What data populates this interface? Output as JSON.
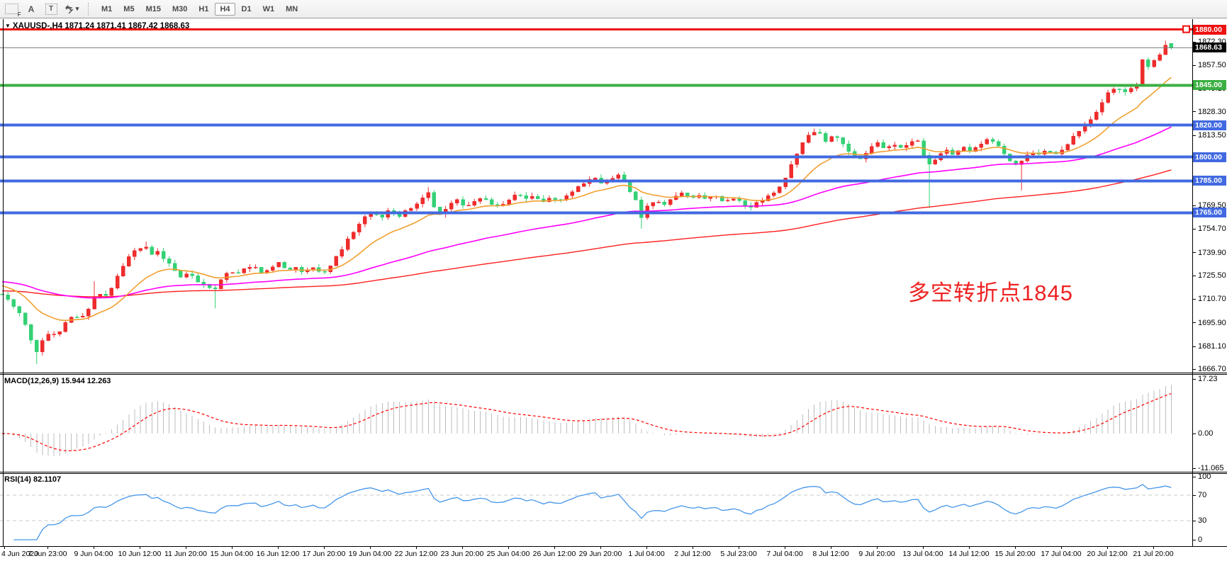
{
  "toolbar": {
    "icons": {
      "grid_f": "F",
      "label_a": "A",
      "text_box": "T",
      "caret": "▾"
    },
    "timeframes": [
      "M1",
      "M5",
      "M15",
      "M30",
      "H1",
      "H4",
      "D1",
      "W1",
      "MN"
    ],
    "active_timeframe": "H4"
  },
  "chart": {
    "dropdown_glyph": "▼",
    "title": "XAUUSD-,H4  1871.24 1871.41 1867.42 1868.63",
    "annotation": {
      "text": "多空转折点1845",
      "color": "#ee2222"
    }
  },
  "price_axis": {
    "ticks": [
      "1872.30",
      "1857.50",
      "1843.10",
      "1828.30",
      "1813.50",
      "1798.70",
      "1783.90",
      "1769.50",
      "1754.70",
      "1739.90",
      "1725.50",
      "1710.70",
      "1695.90",
      "1681.10",
      "1666.70"
    ],
    "badges": [
      {
        "text": "1880.00",
        "price": 1880.0,
        "bg": "#ee1111"
      },
      {
        "text": "1868.63",
        "price": 1868.63,
        "bg": "#000000"
      },
      {
        "text": "1845.00",
        "price": 1845.0,
        "bg": "#3cb043"
      },
      {
        "text": "1820.00",
        "price": 1820.0,
        "bg": "#4169e1"
      },
      {
        "text": "1800.00",
        "price": 1800.0,
        "bg": "#4169e1"
      },
      {
        "text": "1785.00",
        "price": 1785.0,
        "bg": "#4169e1"
      },
      {
        "text": "1765.00",
        "price": 1765.0,
        "bg": "#4169e1"
      }
    ]
  },
  "indicators": {
    "macd": {
      "label": "MACD(12,26,9) 15.944 12.263",
      "axis": [
        {
          "text": "17.23",
          "value": 17.23
        },
        {
          "text": "0.00",
          "value": 0
        },
        {
          "text": "-11.065",
          "value": -11.065
        }
      ]
    },
    "rsi": {
      "label": "RSI(14) 82.1107",
      "axis": [
        {
          "text": "100",
          "value": 100
        },
        {
          "text": "70",
          "value": 70
        },
        {
          "text": "30",
          "value": 30
        },
        {
          "text": "0",
          "value": 0
        }
      ],
      "levels": [
        70,
        30
      ]
    }
  },
  "time_axis": {
    "labels": [
      "4 Jun 2020",
      "7 Jun 23:00",
      "9 Jun 04:00",
      "10 Jun 12:00",
      "11 Jun 20:00",
      "15 Jun 04:00",
      "16 Jun 12:00",
      "17 Jun 20:00",
      "19 Jun 04:00",
      "22 Jun 12:00",
      "23 Jun 20:00",
      "25 Jun 04:00",
      "26 Jun 12:00",
      "29 Jun 20:00",
      "1 Jul 04:00",
      "2 Jul 12:00",
      "5 Jul 23:00",
      "7 Jul 04:00",
      "8 Jul 12:00",
      "9 Jul 20:00",
      "13 Jul 04:00",
      "14 Jul 12:00",
      "15 Jul 20:00",
      "17 Jul 04:00",
      "20 Jul 12:00",
      "21 Jul 20:00"
    ]
  },
  "chart_data": {
    "type": "candlestick",
    "symbol": "XAUUSD-",
    "timeframe": "H4",
    "title": "XAUUSD-,H4",
    "last_ohlc": {
      "open": 1871.24,
      "high": 1871.41,
      "low": 1867.42,
      "close": 1868.63
    },
    "price_range_shown": [
      1666.7,
      1880.0
    ],
    "levels": [
      {
        "price": 1880.0,
        "color": "#ee1111",
        "width": 3
      },
      {
        "price": 1845.0,
        "color": "#3cb043",
        "width": 4
      },
      {
        "price": 1820.0,
        "color": "#4169e1",
        "width": 4
      },
      {
        "price": 1800.0,
        "color": "#4169e1",
        "width": 4
      },
      {
        "price": 1785.0,
        "color": "#4169e1",
        "width": 4
      },
      {
        "price": 1765.0,
        "color": "#4169e1",
        "width": 4
      }
    ],
    "current_price": 1868.63,
    "up_color": "#ee2c2c",
    "down_color": "#34d175",
    "ma_colors": {
      "fast": "#f0a030",
      "mid": "#ff00ff",
      "slow": "#ff2020"
    },
    "price_path": [
      [
        3,
        1713
      ],
      [
        15,
        1709
      ],
      [
        27,
        1703
      ],
      [
        39,
        1692
      ],
      [
        49,
        1676
      ],
      [
        55,
        1681
      ],
      [
        67,
        1689
      ],
      [
        79,
        1688
      ],
      [
        91,
        1695
      ],
      [
        103,
        1701
      ],
      [
        115,
        1699
      ],
      [
        127,
        1706
      ],
      [
        137,
        1715
      ],
      [
        147,
        1711
      ],
      [
        157,
        1718
      ],
      [
        167,
        1726
      ],
      [
        177,
        1734
      ],
      [
        187,
        1741
      ],
      [
        197,
        1742
      ],
      [
        205,
        1745
      ],
      [
        213,
        1738
      ],
      [
        221,
        1742
      ],
      [
        229,
        1737
      ],
      [
        241,
        1733
      ],
      [
        253,
        1724
      ],
      [
        265,
        1728
      ],
      [
        277,
        1723
      ],
      [
        289,
        1719
      ],
      [
        301,
        1716
      ],
      [
        309,
        1722
      ],
      [
        321,
        1728
      ],
      [
        333,
        1726
      ],
      [
        345,
        1730
      ],
      [
        357,
        1732
      ],
      [
        369,
        1727
      ],
      [
        381,
        1730
      ],
      [
        393,
        1734
      ],
      [
        405,
        1729
      ],
      [
        417,
        1731
      ],
      [
        429,
        1727
      ],
      [
        441,
        1731
      ],
      [
        453,
        1727
      ],
      [
        465,
        1731
      ],
      [
        477,
        1739
      ],
      [
        489,
        1747
      ],
      [
        501,
        1755
      ],
      [
        513,
        1762
      ],
      [
        525,
        1765
      ],
      [
        537,
        1762
      ],
      [
        549,
        1767
      ],
      [
        561,
        1762
      ],
      [
        573,
        1766
      ],
      [
        585,
        1770
      ],
      [
        597,
        1774
      ],
      [
        605,
        1778
      ],
      [
        613,
        1768
      ],
      [
        621,
        1764
      ],
      [
        633,
        1770
      ],
      [
        645,
        1773
      ],
      [
        657,
        1768
      ],
      [
        669,
        1772
      ],
      [
        681,
        1775
      ],
      [
        693,
        1771
      ],
      [
        705,
        1768
      ],
      [
        717,
        1773
      ],
      [
        729,
        1777
      ],
      [
        741,
        1773
      ],
      [
        753,
        1776
      ],
      [
        765,
        1771
      ],
      [
        777,
        1775
      ],
      [
        789,
        1772
      ],
      [
        801,
        1776
      ],
      [
        813,
        1780
      ],
      [
        825,
        1784
      ],
      [
        837,
        1788
      ],
      [
        849,
        1783
      ],
      [
        861,
        1786
      ],
      [
        873,
        1789
      ],
      [
        885,
        1781
      ],
      [
        897,
        1773
      ],
      [
        905,
        1762
      ],
      [
        913,
        1769
      ],
      [
        925,
        1773
      ],
      [
        937,
        1770
      ],
      [
        949,
        1774
      ],
      [
        961,
        1778
      ],
      [
        973,
        1774
      ],
      [
        985,
        1777
      ],
      [
        997,
        1773
      ],
      [
        1009,
        1776
      ],
      [
        1021,
        1772
      ],
      [
        1033,
        1775
      ],
      [
        1045,
        1772
      ],
      [
        1057,
        1768
      ],
      [
        1069,
        1772
      ],
      [
        1081,
        1774
      ],
      [
        1093,
        1778
      ],
      [
        1105,
        1784
      ],
      [
        1117,
        1796
      ],
      [
        1129,
        1806
      ],
      [
        1141,
        1814
      ],
      [
        1153,
        1817
      ],
      [
        1165,
        1810
      ],
      [
        1177,
        1814
      ],
      [
        1189,
        1808
      ],
      [
        1201,
        1801
      ],
      [
        1213,
        1799
      ],
      [
        1225,
        1804
      ],
      [
        1237,
        1809
      ],
      [
        1249,
        1804
      ],
      [
        1261,
        1808
      ],
      [
        1273,
        1806
      ],
      [
        1285,
        1809
      ],
      [
        1297,
        1810
      ],
      [
        1305,
        1799
      ],
      [
        1313,
        1795
      ],
      [
        1321,
        1799
      ],
      [
        1333,
        1804
      ],
      [
        1345,
        1802
      ],
      [
        1357,
        1806
      ],
      [
        1369,
        1804
      ],
      [
        1381,
        1808
      ],
      [
        1393,
        1811
      ],
      [
        1405,
        1810
      ],
      [
        1417,
        1801
      ],
      [
        1429,
        1795
      ],
      [
        1441,
        1798
      ],
      [
        1453,
        1803
      ],
      [
        1465,
        1801
      ],
      [
        1477,
        1805
      ],
      [
        1489,
        1801
      ],
      [
        1501,
        1806
      ],
      [
        1513,
        1812
      ],
      [
        1525,
        1817
      ],
      [
        1537,
        1822
      ],
      [
        1549,
        1830
      ],
      [
        1561,
        1839
      ],
      [
        1573,
        1843
      ],
      [
        1585,
        1841
      ],
      [
        1597,
        1843
      ],
      [
        1605,
        1846
      ],
      [
        1613,
        1864
      ],
      [
        1621,
        1856
      ],
      [
        1629,
        1861
      ],
      [
        1637,
        1865
      ],
      [
        1645,
        1871
      ],
      [
        1652,
        1868.6
      ]
    ],
    "wick_lows": [
      [
        49,
        1670
      ],
      [
        305,
        1705
      ],
      [
        905,
        1755
      ],
      [
        1313,
        1768
      ],
      [
        1441,
        1779
      ]
    ],
    "wick_highs": [
      [
        137,
        1722
      ],
      [
        205,
        1747
      ],
      [
        605,
        1781
      ],
      [
        873,
        1790
      ],
      [
        1645,
        1873
      ]
    ],
    "macd": {
      "histogram_color": "#bdbdbd",
      "signal_color": "#ff0000",
      "main": 15.944,
      "signal": 12.263,
      "range": [
        -11.065,
        17.23
      ]
    },
    "rsi": {
      "line_color": "#4596ea",
      "current": 82.1107,
      "period": 14,
      "overbought": 70,
      "oversold": 30
    }
  }
}
